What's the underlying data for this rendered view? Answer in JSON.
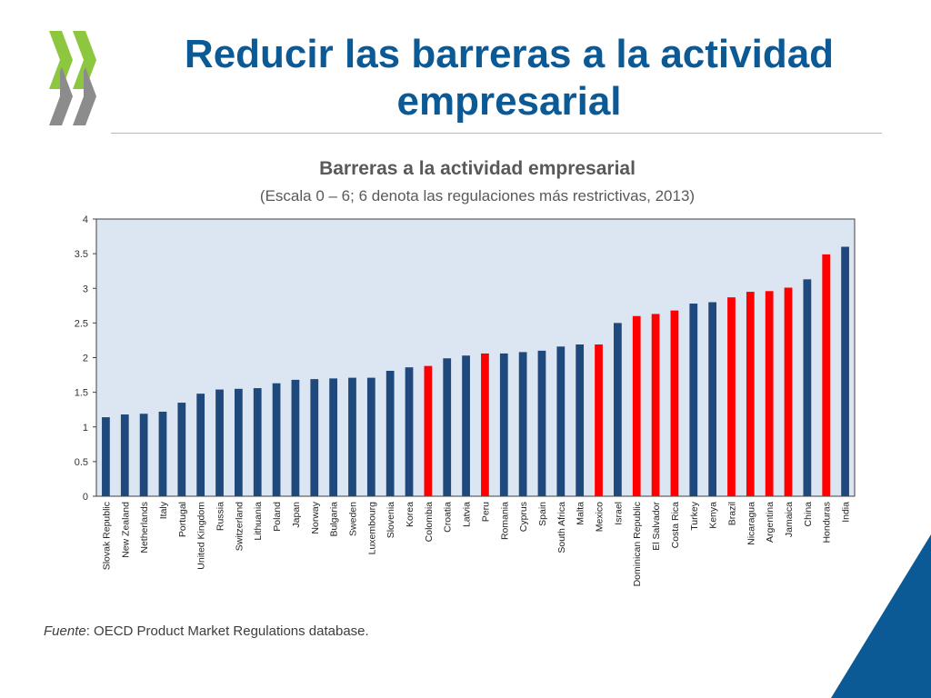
{
  "slide": {
    "title": "Reducir las barreras a la actividad empresarial"
  },
  "colors": {
    "title": "#0b5a96",
    "bar_default": "#1f487c",
    "bar_highlight": "#ff0000",
    "plot_background": "#dce6f2",
    "logo_green": "#8dc63f",
    "logo_grey": "#8c8c8c",
    "corner_blue": "#0b5a96"
  },
  "icons": {
    "logo": "oecd-chevron-logo",
    "corner": "blue-triangle-decoration"
  },
  "source": {
    "label": "Fuente",
    "text": ": OECD Product Market Regulations database."
  },
  "chart_data": {
    "type": "bar",
    "title": "Barreras a la  actividad empresarial",
    "subtitle": "(Escala 0 – 6;  6 denota las regulaciones más restrictivas, 2013)",
    "xlabel": "",
    "ylabel": "",
    "ylim": [
      0,
      4
    ],
    "yticks": [
      "0",
      "0.5",
      "1",
      "1.5",
      "2",
      "2.5",
      "3",
      "3.5",
      "4"
    ],
    "grid": false,
    "legend": "none",
    "categories": [
      "Slovak Republic",
      "New Zealand",
      "Netherlands",
      "Italy",
      "Portugal",
      "United Kingdom",
      "Russia",
      "Switzerland",
      "Lithuania",
      "Poland",
      "Japan",
      "Norway",
      "Bulgaria",
      "Sweden",
      "Luxembourg",
      "Slovenia",
      "Korea",
      "Colombia",
      "Croatia",
      "Latvia",
      "Peru",
      "Romania",
      "Cyprus",
      "Spain",
      "South Africa",
      "Malta",
      "Mexico",
      "Israel",
      "Dominican Republic",
      "El Salvador",
      "Costa Rica",
      "Turkey",
      "Kenya",
      "Brazil",
      "Nicaragua",
      "Argentina",
      "Jamaica",
      "China",
      "Honduras",
      "India"
    ],
    "values": [
      1.14,
      1.18,
      1.19,
      1.22,
      1.35,
      1.48,
      1.54,
      1.55,
      1.56,
      1.63,
      1.68,
      1.69,
      1.7,
      1.71,
      1.71,
      1.81,
      1.86,
      1.88,
      1.99,
      2.03,
      2.06,
      2.06,
      2.08,
      2.1,
      2.16,
      2.19,
      2.19,
      2.5,
      2.6,
      2.63,
      2.68,
      2.78,
      2.8,
      2.87,
      2.95,
      2.96,
      3.01,
      3.13,
      3.49,
      3.6
    ],
    "highlighted": [
      "Colombia",
      "Peru",
      "Mexico",
      "Dominican Republic",
      "El Salvador",
      "Costa Rica",
      "Brazil",
      "Nicaragua",
      "Argentina",
      "Jamaica",
      "Honduras"
    ]
  }
}
